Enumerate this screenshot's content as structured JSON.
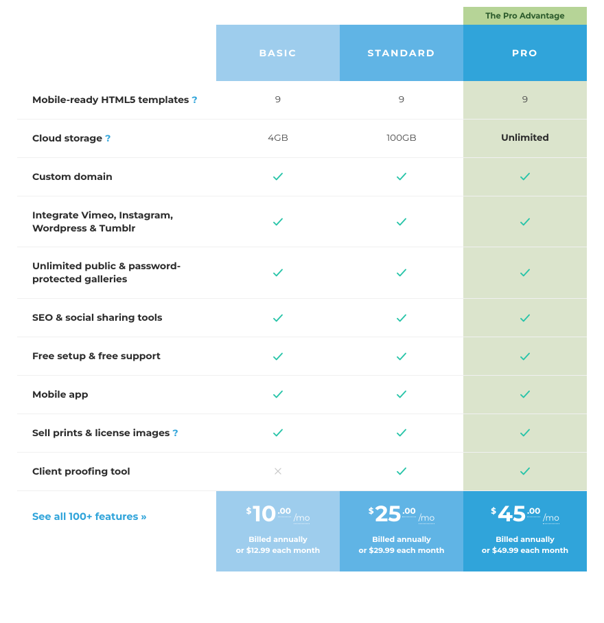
{
  "colors": {
    "basic_head": "#9ecded",
    "standard_head": "#60b4e5",
    "pro_head": "#30a4da",
    "pro_column_bg": "#dbe4cc",
    "ribbon_bg": "#b6d497",
    "ribbon_text": "#2b5a2b",
    "check_color": "#27c4a8",
    "cross_color": "#c8c8c8",
    "link_color": "#30a4da",
    "feature_text": "#2b2b2b",
    "row_border": "#f0f0f0"
  },
  "ribbon": "The Pro Advantage",
  "plans": {
    "basic": {
      "label": "BASIC",
      "amount": "10",
      "cents": ".00",
      "per": "/mo",
      "billed1": "Billed annually",
      "billed2": "or $12.99 each month"
    },
    "standard": {
      "label": "STANDARD",
      "amount": "25",
      "cents": ".00",
      "per": "/mo",
      "billed1": "Billed annually",
      "billed2": "or $29.99 each month"
    },
    "pro": {
      "label": "PRO",
      "amount": "45",
      "cents": ".00",
      "per": "/mo",
      "billed1": "Billed annually",
      "billed2": "or $49.99 each month"
    }
  },
  "currency_symbol": "$",
  "features": [
    {
      "label": "Mobile-ready HTML5 templates",
      "help": true,
      "basic": "9",
      "standard": "9",
      "pro": "9"
    },
    {
      "label": "Cloud storage",
      "help": true,
      "basic": "4GB",
      "standard": "100GB",
      "pro": "Unlimited",
      "pro_bold": true
    },
    {
      "label": "Custom domain",
      "help": false,
      "basic": "check",
      "standard": "check",
      "pro": "check"
    },
    {
      "label": "Integrate Vimeo, Instagram, Wordpress & Tumblr",
      "help": false,
      "basic": "check",
      "standard": "check",
      "pro": "check"
    },
    {
      "label": "Unlimited public & password-protected galleries",
      "help": false,
      "basic": "check",
      "standard": "check",
      "pro": "check"
    },
    {
      "label": "SEO & social sharing tools",
      "help": false,
      "basic": "check",
      "standard": "check",
      "pro": "check"
    },
    {
      "label": "Free setup & free support",
      "help": false,
      "basic": "check",
      "standard": "check",
      "pro": "check"
    },
    {
      "label": "Mobile app",
      "help": false,
      "basic": "check",
      "standard": "check",
      "pro": "check"
    },
    {
      "label": "Sell prints & license images",
      "help": true,
      "basic": "check",
      "standard": "check",
      "pro": "check"
    },
    {
      "label": "Client proofing tool",
      "help": false,
      "basic": "cross",
      "standard": "check",
      "pro": "check"
    }
  ],
  "see_all_label": "See all 100+ features »",
  "help_symbol": "?"
}
